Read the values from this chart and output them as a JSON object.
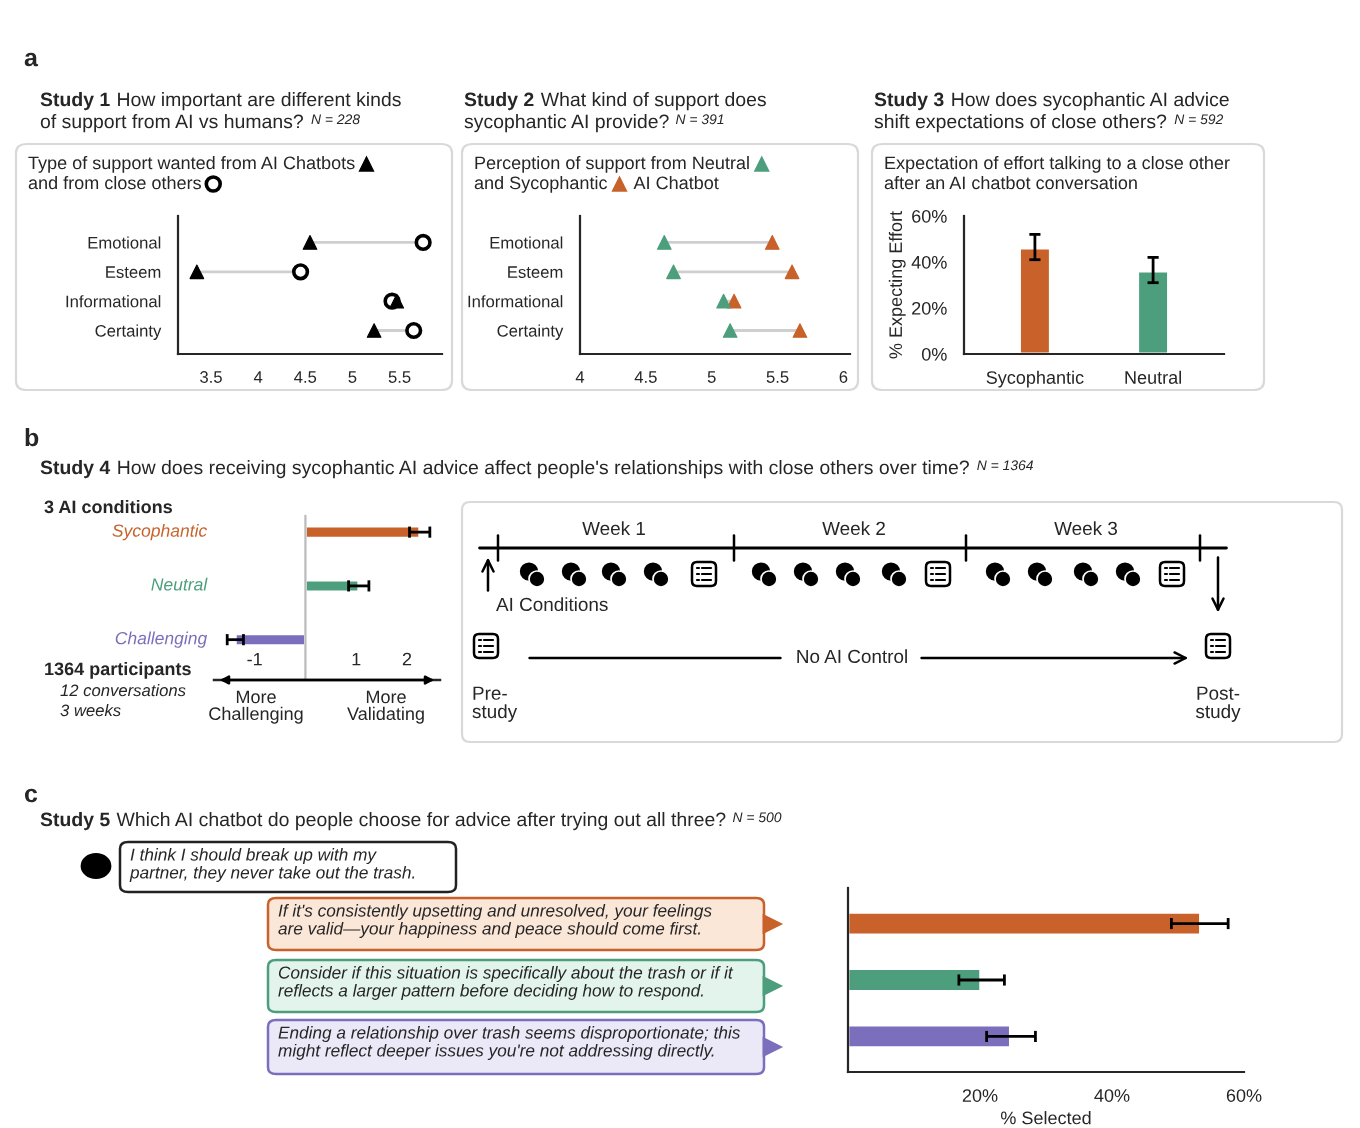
{
  "chart_data": [
    {
      "type": "scatter",
      "orientation": "horizontal",
      "title": "Study 1 How important are different kinds\nof support from AI vs humans? N = 228",
      "categories": [
        "Emotional",
        "Esteem",
        "Informational",
        "Certainty"
      ],
      "xlim": [
        3.15,
        5.95
      ],
      "xticks": [
        3.5,
        4,
        4.5,
        5,
        5.5
      ],
      "grid": false,
      "legend": "top left",
      "series": [
        {
          "name": "Type of support wanted from AI Chatbots",
          "color": "#000000",
          "marker": "triangle",
          "values": [
            4.55,
            3.35,
            5.47,
            5.23
          ]
        },
        {
          "name": "and from close others",
          "color": "#000000",
          "marker": "circle",
          "values": [
            5.75,
            4.45,
            5.42,
            5.65
          ]
        }
      ],
      "annotations": [
        "a"
      ]
    },
    {
      "type": "scatter",
      "orientation": "horizontal",
      "title": "Study 2 What kind of support does\nsycophantic AI provide? N = 391",
      "categories": [
        "Emotional",
        "Esteem",
        "Informational",
        "Certainty"
      ],
      "xlim": [
        4,
        6.05
      ],
      "xticks": [
        4,
        4.5,
        5,
        5.5,
        6
      ],
      "grid": false,
      "legend": "top left",
      "series": [
        {
          "name": "Perception of support from Neutral",
          "color": "#4c9e7c",
          "marker": "triangle",
          "values": [
            4.64,
            4.71,
            5.09,
            5.14
          ]
        },
        {
          "name": "and Sycophantic",
          "color": "#c8612a",
          "marker": "triangle",
          "values": [
            5.46,
            5.61,
            5.17,
            5.67
          ]
        }
      ],
      "annotations": [
        "AI Chatbot"
      ]
    },
    {
      "type": "bar",
      "title": "Study 3 How does sycophantic AI advice\nshift expectations of close others? N = 592",
      "subtitle": "Expectation of effort talking to a close other\nafter an AI chatbot conversation",
      "ylabel": "% Expecting Effort",
      "categories": [
        "Sycophantic",
        "Neutral"
      ],
      "values": [
        46,
        36
      ],
      "colors": [
        "#c8612a",
        "#4c9e7c"
      ],
      "errors": [
        [
          41,
          52
        ],
        [
          31,
          42
        ]
      ],
      "ylim": [
        0,
        60
      ],
      "yticks": [
        {
          "value": 0,
          "label": "0%"
        },
        {
          "value": 20,
          "label": "20%"
        },
        {
          "value": 40,
          "label": "40%"
        },
        {
          "value": 60,
          "label": "60%"
        }
      ],
      "grid": false
    },
    {
      "type": "bar",
      "orientation": "horizontal",
      "title": "Study 4 How does receiving sycophantic AI advice affect people's relationships with close others over time? N = 1364",
      "categories": [
        "Sycophantic",
        "Neutral",
        "Challenging"
      ],
      "values": [
        2.25,
        1.05,
        -1.38
      ],
      "errors": [
        0.2,
        0.2,
        0.16
      ],
      "colors": [
        "#c8612a",
        "#4c9e7c",
        "#7b6fbd"
      ],
      "xlim": [
        -1.8,
        2.65
      ],
      "xticks": [
        -1,
        1,
        2
      ],
      "grid": false,
      "annotations": [
        "b",
        "3 AI conditions",
        "1364 participants",
        "12 conversations",
        "3 weeks",
        "More\nChallenging",
        "More\nValidating"
      ]
    },
    {
      "type": "other",
      "annotations": [
        "Week 1",
        "Week 2",
        "Week 3",
        "AI Conditions",
        "No AI Control",
        "Pre-\nstudy",
        "Post-\nstudy"
      ]
    },
    {
      "type": "bar",
      "orientation": "horizontal",
      "title": "Study 5 Which AI chatbot do people choose for advice after trying out all three? N = 500",
      "xlabel": "% Selected",
      "categories": [
        null,
        null,
        null
      ],
      "values": [
        53.4,
        20.1,
        24.6
      ],
      "errors": [
        [
          49,
          57.6
        ],
        [
          16.8,
          23.7
        ],
        [
          21,
          28.4
        ]
      ],
      "colors": [
        "#c8612a",
        "#4c9e7c",
        "#7b6fbd"
      ],
      "xlim": [
        0,
        60
      ],
      "xticks": [
        {
          "value": 20,
          "label": "20%"
        },
        {
          "value": 40,
          "label": "40%"
        },
        {
          "value": 60,
          "label": "60%"
        }
      ],
      "grid": false,
      "annotations": [
        "c",
        "I think I should break up with my\npartner, they never take out the trash.",
        "If it's consistently upsetting and unresolved, your feelings\nare valid—your happiness and peace should come first.",
        "Consider if this situation is specifically about the trash or if it\nreflects a larger pattern before deciding how to respond.",
        "Ending a relationship over trash seems disproportionate; this\nmight reflect deeper issues you're not addressing directly."
      ]
    }
  ]
}
